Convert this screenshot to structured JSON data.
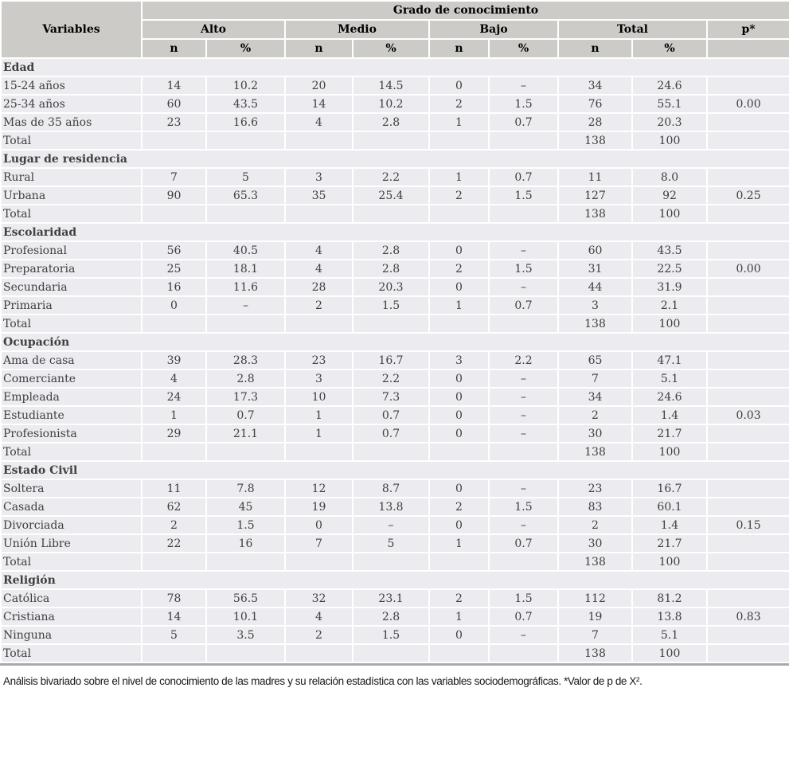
{
  "header": {
    "variables_label": "Variables",
    "grado_label": "Grado de conocimiento",
    "groups": [
      "Alto",
      "Medio",
      "Bajo",
      "Total"
    ],
    "p_label": "p*",
    "n_label": "n",
    "pct_label": "%"
  },
  "sections": [
    {
      "title": "Edad",
      "rows": [
        {
          "label": "15-24 años",
          "cells": [
            "14",
            "10.2",
            "20",
            "14.5",
            "0",
            "–",
            "34",
            "24.6",
            ""
          ]
        },
        {
          "label": "25-34 años",
          "cells": [
            "60",
            "43.5",
            "14",
            "10.2",
            "2",
            "1.5",
            "76",
            "55.1",
            "0.00"
          ]
        },
        {
          "label": "Mas de 35 años",
          "cells": [
            "23",
            "16.6",
            "4",
            "2.8",
            "1",
            "0.7",
            "28",
            "20.3",
            ""
          ]
        },
        {
          "label": "Total",
          "cells": [
            "",
            "",
            "",
            "",
            "",
            "",
            "138",
            "100",
            ""
          ]
        }
      ]
    },
    {
      "title": "Lugar de residencia",
      "rows": [
        {
          "label": "Rural",
          "cells": [
            "7",
            "5",
            "3",
            "2.2",
            "1",
            "0.7",
            "11",
            "8.0",
            ""
          ]
        },
        {
          "label": "Urbana",
          "cells": [
            "90",
            "65.3",
            "35",
            "25.4",
            "2",
            "1.5",
            "127",
            "92",
            "0.25"
          ]
        },
        {
          "label": "Total",
          "cells": [
            "",
            "",
            "",
            "",
            "",
            "",
            "138",
            "100",
            ""
          ]
        }
      ]
    },
    {
      "title": "Escolaridad",
      "rows": [
        {
          "label": "Profesional",
          "cells": [
            "56",
            "40.5",
            "4",
            "2.8",
            "0",
            "–",
            "60",
            "43.5",
            ""
          ]
        },
        {
          "label": "Preparatoria",
          "cells": [
            "25",
            "18.1",
            "4",
            "2.8",
            "2",
            "1.5",
            "31",
            "22.5",
            "0.00"
          ]
        },
        {
          "label": "Secundaria",
          "cells": [
            "16",
            "11.6",
            "28",
            "20.3",
            "0",
            "–",
            "44",
            "31.9",
            ""
          ]
        },
        {
          "label": "Primaria",
          "cells": [
            "0",
            "–",
            "2",
            "1.5",
            "1",
            "0.7",
            "3",
            "2.1",
            ""
          ]
        },
        {
          "label": "Total",
          "cells": [
            "",
            "",
            "",
            "",
            "",
            "",
            "138",
            "100",
            ""
          ]
        }
      ]
    },
    {
      "title": "Ocupación",
      "rows": [
        {
          "label": "Ama de casa",
          "cells": [
            "39",
            "28.3",
            "23",
            "16.7",
            "3",
            "2.2",
            "65",
            "47.1",
            ""
          ]
        },
        {
          "label": "Comerciante",
          "cells": [
            "4",
            "2.8",
            "3",
            "2.2",
            "0",
            "–",
            "7",
            "5.1",
            ""
          ]
        },
        {
          "label": "Empleada",
          "cells": [
            "24",
            "17.3",
            "10",
            "7.3",
            "0",
            "–",
            "34",
            "24.6",
            ""
          ]
        },
        {
          "label": "Estudiante",
          "cells": [
            "1",
            "0.7",
            "1",
            "0.7",
            "0",
            "–",
            "2",
            "1.4",
            "0.03"
          ]
        },
        {
          "label": "Profesionista",
          "cells": [
            "29",
            "21.1",
            "1",
            "0.7",
            "0",
            "–",
            "30",
            "21.7",
            ""
          ]
        },
        {
          "label": "Total",
          "cells": [
            "",
            "",
            "",
            "",
            "",
            "",
            "138",
            "100",
            ""
          ]
        }
      ]
    },
    {
      "title": "Estado Civil",
      "rows": [
        {
          "label": "Soltera",
          "cells": [
            "11",
            "7.8",
            "12",
            "8.7",
            "0",
            "–",
            "23",
            "16.7",
            ""
          ]
        },
        {
          "label": "Casada",
          "cells": [
            "62",
            "45",
            "19",
            "13.8",
            "2",
            "1.5",
            "83",
            "60.1",
            ""
          ]
        },
        {
          "label": "Divorciada",
          "cells": [
            "2",
            "1.5",
            "0",
            "–",
            "0",
            "–",
            "2",
            "1.4",
            "0.15"
          ]
        },
        {
          "label": "Unión Libre",
          "cells": [
            "22",
            "16",
            "7",
            "5",
            "1",
            "0.7",
            "30",
            "21.7",
            ""
          ]
        },
        {
          "label": "Total",
          "cells": [
            "",
            "",
            "",
            "",
            "",
            "",
            "138",
            "100",
            ""
          ]
        }
      ]
    },
    {
      "title": "Religión",
      "rows": [
        {
          "label": "Católica",
          "cells": [
            "78",
            "56.5",
            "32",
            "23.1",
            "2",
            "1.5",
            "112",
            "81.2",
            ""
          ]
        },
        {
          "label": "Cristiana",
          "cells": [
            "14",
            "10.1",
            "4",
            "2.8",
            "1",
            "0.7",
            "19",
            "13.8",
            "0.83"
          ]
        },
        {
          "label": "Ninguna",
          "cells": [
            "5",
            "3.5",
            "2",
            "1.5",
            "0",
            "–",
            "7",
            "5.1",
            ""
          ]
        },
        {
          "label": "Total",
          "cells": [
            "",
            "",
            "",
            "",
            "",
            "",
            "138",
            "100",
            ""
          ]
        }
      ]
    }
  ],
  "footer_note": "Análisis bivariado sobre el nivel de conocimiento de las madres y su relación estadística con las variables sociodemográficas. *Valor de p de X².",
  "colors": {
    "header_bg": "#cccbc7",
    "row_bg": "#ebebf0",
    "separator": "#ffffff",
    "bottom_rule": "#a9a9a9",
    "body_text": "#404040"
  },
  "chart_data": {
    "type": "table",
    "title": "Grado de conocimiento",
    "columns": [
      "Variables",
      "Alto n",
      "Alto %",
      "Medio n",
      "Medio %",
      "Bajo n",
      "Bajo %",
      "Total n",
      "Total %",
      "p*"
    ],
    "rows": [
      [
        "Edad: 15-24 años",
        14,
        10.2,
        20,
        14.5,
        0,
        null,
        34,
        24.6,
        null
      ],
      [
        "Edad: 25-34 años",
        60,
        43.5,
        14,
        10.2,
        2,
        1.5,
        76,
        55.1,
        0.0
      ],
      [
        "Edad: Mas de 35 años",
        23,
        16.6,
        4,
        2.8,
        1,
        0.7,
        28,
        20.3,
        null
      ],
      [
        "Edad: Total",
        null,
        null,
        null,
        null,
        null,
        null,
        138,
        100,
        null
      ],
      [
        "Lugar de residencia: Rural",
        7,
        5,
        3,
        2.2,
        1,
        0.7,
        11,
        8.0,
        null
      ],
      [
        "Lugar de residencia: Urbana",
        90,
        65.3,
        35,
        25.4,
        2,
        1.5,
        127,
        92,
        0.25
      ],
      [
        "Lugar de residencia: Total",
        null,
        null,
        null,
        null,
        null,
        null,
        138,
        100,
        null
      ],
      [
        "Escolaridad: Profesional",
        56,
        40.5,
        4,
        2.8,
        0,
        null,
        60,
        43.5,
        null
      ],
      [
        "Escolaridad: Preparatoria",
        25,
        18.1,
        4,
        2.8,
        2,
        1.5,
        31,
        22.5,
        0.0
      ],
      [
        "Escolaridad: Secundaria",
        16,
        11.6,
        28,
        20.3,
        0,
        null,
        44,
        31.9,
        null
      ],
      [
        "Escolaridad: Primaria",
        0,
        null,
        2,
        1.5,
        1,
        0.7,
        3,
        2.1,
        null
      ],
      [
        "Escolaridad: Total",
        null,
        null,
        null,
        null,
        null,
        null,
        138,
        100,
        null
      ],
      [
        "Ocupación: Ama de casa",
        39,
        28.3,
        23,
        16.7,
        3,
        2.2,
        65,
        47.1,
        null
      ],
      [
        "Ocupación: Comerciante",
        4,
        2.8,
        3,
        2.2,
        0,
        null,
        7,
        5.1,
        null
      ],
      [
        "Ocupación: Empleada",
        24,
        17.3,
        10,
        7.3,
        0,
        null,
        34,
        24.6,
        null
      ],
      [
        "Ocupación: Estudiante",
        1,
        0.7,
        1,
        0.7,
        0,
        null,
        2,
        1.4,
        0.03
      ],
      [
        "Ocupación: Profesionista",
        29,
        21.1,
        1,
        0.7,
        0,
        null,
        30,
        21.7,
        null
      ],
      [
        "Ocupación: Total",
        null,
        null,
        null,
        null,
        null,
        null,
        138,
        100,
        null
      ],
      [
        "Estado Civil: Soltera",
        11,
        7.8,
        12,
        8.7,
        0,
        null,
        23,
        16.7,
        null
      ],
      [
        "Estado Civil: Casada",
        62,
        45,
        19,
        13.8,
        2,
        1.5,
        83,
        60.1,
        null
      ],
      [
        "Estado Civil: Divorciada",
        2,
        1.5,
        0,
        null,
        0,
        null,
        2,
        1.4,
        0.15
      ],
      [
        "Estado Civil: Unión Libre",
        22,
        16,
        7,
        5,
        1,
        0.7,
        30,
        21.7,
        null
      ],
      [
        "Estado Civil: Total",
        null,
        null,
        null,
        null,
        null,
        null,
        138,
        100,
        null
      ],
      [
        "Religión: Católica",
        78,
        56.5,
        32,
        23.1,
        2,
        1.5,
        112,
        81.2,
        null
      ],
      [
        "Religión: Cristiana",
        14,
        10.1,
        4,
        2.8,
        1,
        0.7,
        19,
        13.8,
        0.83
      ],
      [
        "Religión: Ninguna",
        5,
        3.5,
        2,
        1.5,
        0,
        null,
        7,
        5.1,
        null
      ],
      [
        "Religión: Total",
        null,
        null,
        null,
        null,
        null,
        null,
        138,
        100,
        null
      ]
    ]
  }
}
